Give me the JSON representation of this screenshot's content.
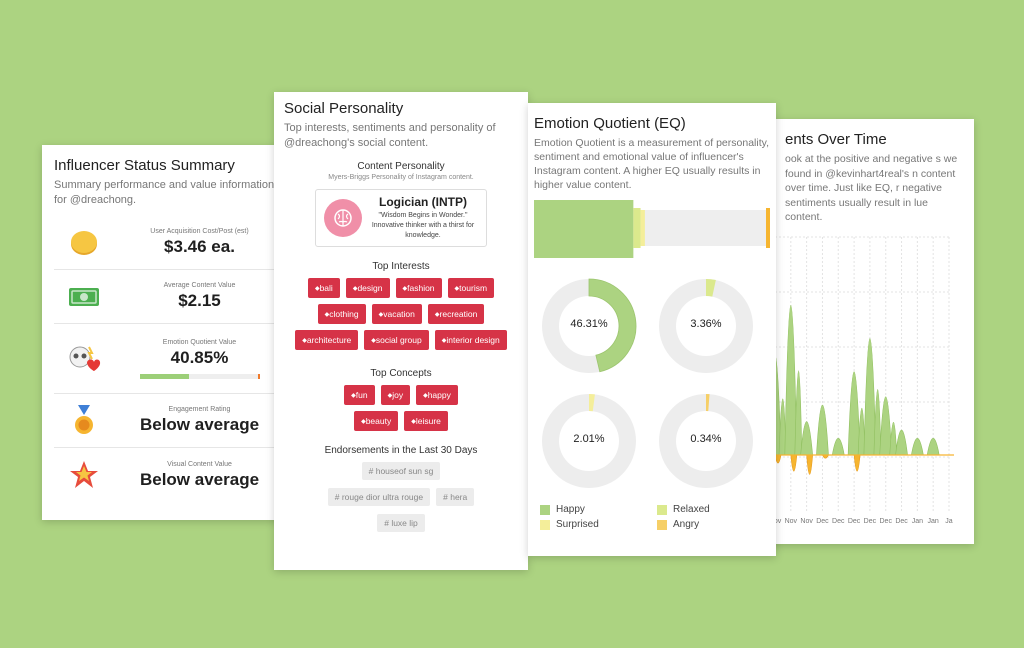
{
  "card1": {
    "title": "Influencer Status Summary",
    "subtitle": "Summary performance and value information for @dreachong.",
    "metrics": [
      {
        "label": "User Acquisition Cost/Post (est)",
        "value": "$3.46 ea.",
        "icon": "coin-icon"
      },
      {
        "label": "Average Content Value",
        "value": "$2.15",
        "icon": "money-icon"
      },
      {
        "label": "Emotion Quotient Value",
        "value": "40.85%",
        "icon": "skull-heart-icon",
        "progress": 0.4085
      },
      {
        "label": "Engagement Rating",
        "value": "Below average",
        "icon": "medal-icon"
      },
      {
        "label": "Visual Content Value",
        "value": "Below average",
        "icon": "star-icon"
      }
    ]
  },
  "card2": {
    "title": "Social Personality",
    "subtitle": "Top interests, sentiments and personality of @dreachong's social content.",
    "personality_heading": "Content Personality",
    "personality_sub": "Myers-Briggs Personality of Instagram content.",
    "personality_type": "Logician (INTP)",
    "personality_desc": "\"Wisdom Begins in Wonder.\" Innovative thinker with a thirst for knowledge.",
    "interests_heading": "Top Interests",
    "interests": [
      "bali",
      "design",
      "fashion",
      "tourism",
      "clothing",
      "vacation",
      "recreation",
      "architecture",
      "social group",
      "interior design"
    ],
    "concepts_heading": "Top Concepts",
    "concepts": [
      "fun",
      "joy",
      "happy",
      "beauty",
      "leisure"
    ],
    "endorsements_heading": "Endorsements in the Last 30 Days",
    "endorsements": [
      "houseof sun sg",
      "rouge dior ultra rouge",
      "hera",
      "luxe lip"
    ]
  },
  "card3": {
    "title": "Emotion Quotient (EQ)",
    "subtitle": "Emotion Quotient is a measurement of personality, sentiment and emotional value of influencer's Instagram content. A higher EQ usually results in higher value content.",
    "bar": {
      "happy": 0.4631,
      "relaxed": 0.0336,
      "surprised": 0.0201,
      "angry": 0.0034
    },
    "donuts": [
      {
        "emotion": "Happy",
        "fraction": 0.4631,
        "label": "46.31%",
        "color": "#acd381"
      },
      {
        "emotion": "Relaxed",
        "fraction": 0.0336,
        "label": "3.36%",
        "color": "#dbe98d"
      },
      {
        "emotion": "Surprised",
        "fraction": 0.0201,
        "label": "2.01%",
        "color": "#f4ee9a"
      },
      {
        "emotion": "Angry",
        "fraction": 0.0034,
        "label": "0.34%",
        "color": "#f6cf67"
      }
    ],
    "legend": [
      {
        "label": "Happy",
        "color": "#acd381"
      },
      {
        "label": "Relaxed",
        "color": "#dbe98d"
      },
      {
        "label": "Surprised",
        "color": "#f4ee9a"
      },
      {
        "label": "Angry",
        "color": "#f6cf67"
      }
    ]
  },
  "card4": {
    "title": "ents Over Time",
    "subtitle": "ook at the positive and negative s we found in @kevinhart4real's n content over time. Just like EQ, r negative sentiments usually result in lue content.",
    "chart_data": {
      "type": "area",
      "x": [
        "Nov",
        "Nov",
        "Nov",
        "Dec",
        "Dec",
        "Dec",
        "Dec",
        "Dec",
        "Dec",
        "Jan",
        "Jan",
        "Ja"
      ],
      "series": [
        {
          "values": [
            0.6,
            0.9,
            0.2,
            0.3,
            0.1,
            0.5,
            0.7,
            0.35,
            0.15,
            0.1,
            0.1,
            0
          ]
        },
        {
          "values": [
            -0.05,
            -0.1,
            -0.12,
            -0.02,
            0,
            -0.1,
            0,
            0,
            0,
            0,
            0,
            0
          ]
        }
      ]
    }
  }
}
